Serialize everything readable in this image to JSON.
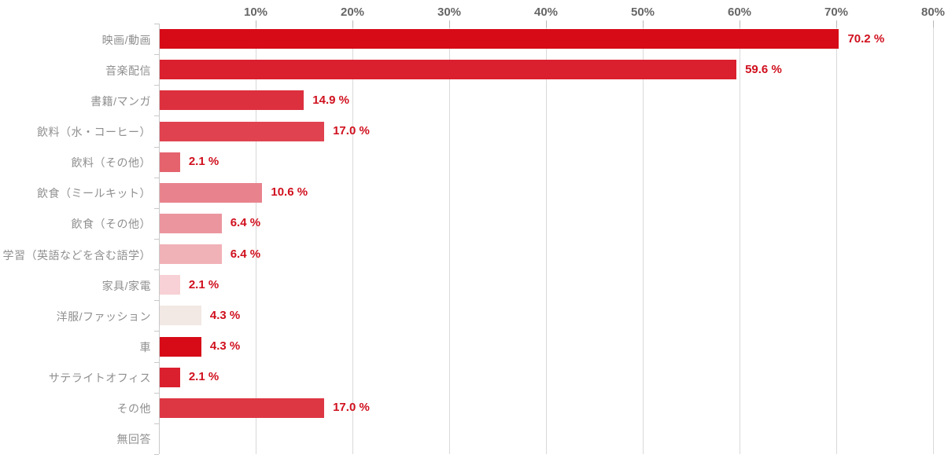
{
  "chart_data": {
    "type": "bar",
    "orientation": "horizontal",
    "title": "",
    "xlabel": "",
    "ylabel": "",
    "xlim": [
      0,
      80
    ],
    "grid": true,
    "x_ticks": [
      {
        "value": 10,
        "label": "10%"
      },
      {
        "value": 20,
        "label": "20%"
      },
      {
        "value": 30,
        "label": "30%"
      },
      {
        "value": 40,
        "label": "40%"
      },
      {
        "value": 50,
        "label": "50%"
      },
      {
        "value": 60,
        "label": "60%"
      },
      {
        "value": 70,
        "label": "70%"
      },
      {
        "value": 80,
        "label": "80%"
      }
    ],
    "categories": [
      "映画/動画",
      "音楽配信",
      "書籍/マンガ",
      "飲料（水・コーヒー）",
      "飲料（その他）",
      "飲食（ミールキット）",
      "飲食（その他）",
      "学習（英語などを含む語学）",
      "家具/家電",
      "洋服/ファッション",
      "車",
      "サテライトオフィス",
      "その他",
      "無回答"
    ],
    "values": [
      70.2,
      59.6,
      14.9,
      17.0,
      2.1,
      10.6,
      6.4,
      6.4,
      2.1,
      4.3,
      4.3,
      2.1,
      17.0,
      0
    ],
    "value_labels": [
      "70.2 %",
      "59.6 %",
      "14.9 %",
      "17.0 %",
      "2.1 %",
      "10.6 %",
      "6.4 %",
      "6.4 %",
      "2.1 %",
      "4.3 %",
      "4.3 %",
      "2.1 %",
      "17.0 %",
      ""
    ],
    "bar_colors": [
      "#d60b17",
      "#da202e",
      "#dd303e",
      "#e0424f",
      "#e4636d",
      "#e8838d",
      "#eb959e",
      "#f0b1b7",
      "#f7d1d5",
      "#f2e8e4",
      "#d60b17",
      "#da202e",
      "#dd3744",
      "#ffffff"
    ],
    "colors": {
      "gridline": "#d9d9d9",
      "axis": "#c9c9c9",
      "tick_label": "#666666",
      "category_label": "#8f8f8f",
      "value_label": "#d0101e",
      "background": "#ffffff"
    },
    "legend": null
  }
}
